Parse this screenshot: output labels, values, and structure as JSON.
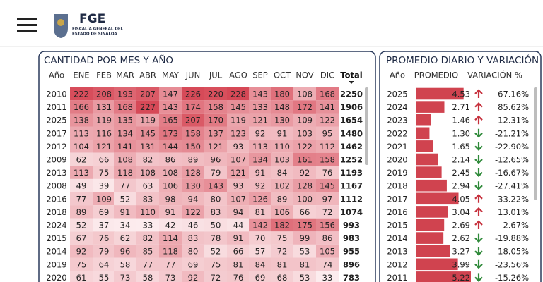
{
  "header": {
    "title": "FGE",
    "subtitle_lines": [
      "FISCALÍA GENERAL DEL",
      "ESTADO DE SINALOA"
    ]
  },
  "monthly_table": {
    "title": "CANTIDAD POR MES Y AÑO",
    "columns": [
      "Año",
      "ENE",
      "FEB",
      "MAR",
      "ABR",
      "MAY",
      "JUN",
      "JUL",
      "AGO",
      "SEP",
      "OCT",
      "NOV",
      "DIC",
      "Total"
    ],
    "rows": [
      [
        2010,
        222,
        208,
        193,
        207,
        147,
        226,
        220,
        228,
        143,
        180,
        108,
        168,
        2250
      ],
      [
        2011,
        166,
        131,
        168,
        227,
        143,
        174,
        158,
        145,
        133,
        148,
        172,
        141,
        1906
      ],
      [
        2025,
        138,
        119,
        135,
        119,
        165,
        207,
        170,
        119,
        121,
        130,
        109,
        122,
        1654
      ],
      [
        2017,
        113,
        116,
        134,
        145,
        173,
        158,
        137,
        123,
        92,
        91,
        103,
        95,
        1480
      ],
      [
        2012,
        104,
        121,
        141,
        131,
        144,
        150,
        121,
        93,
        113,
        110,
        122,
        112,
        1462
      ],
      [
        2009,
        62,
        66,
        108,
        82,
        86,
        89,
        96,
        107,
        134,
        103,
        161,
        158,
        1252
      ],
      [
        2013,
        113,
        75,
        118,
        108,
        108,
        128,
        79,
        121,
        91,
        84,
        92,
        76,
        1193
      ],
      [
        2008,
        49,
        39,
        77,
        63,
        106,
        130,
        143,
        93,
        92,
        102,
        128,
        145,
        1167
      ],
      [
        2016,
        77,
        109,
        52,
        83,
        98,
        94,
        80,
        107,
        126,
        89,
        100,
        97,
        1112
      ],
      [
        2018,
        89,
        69,
        91,
        110,
        91,
        122,
        83,
        94,
        81,
        106,
        66,
        72,
        1074
      ],
      [
        2024,
        52,
        37,
        34,
        33,
        42,
        46,
        50,
        44,
        142,
        182,
        175,
        156,
        993
      ],
      [
        2015,
        67,
        76,
        62,
        82,
        114,
        83,
        78,
        91,
        70,
        75,
        99,
        86,
        983
      ],
      [
        2014,
        92,
        79,
        96,
        85,
        118,
        80,
        52,
        66,
        57,
        72,
        53,
        105,
        955
      ],
      [
        2019,
        75,
        64,
        58,
        77,
        77,
        69,
        75,
        81,
        84,
        81,
        81,
        74,
        896
      ],
      [
        2020,
        61,
        55,
        73,
        58,
        73,
        92,
        72,
        76,
        69,
        68,
        53,
        33,
        783
      ]
    ]
  },
  "daily_table": {
    "title": "PROMEDIO DIARIO Y VARIACIÓN",
    "columns": [
      "Año",
      "PROMEDIO",
      "VARIACIÓN %"
    ],
    "rows": [
      [
        2025,
        "4.53",
        "67.16%"
      ],
      [
        2024,
        "2.71",
        "85.62%"
      ],
      [
        2023,
        "1.46",
        "12.31%"
      ],
      [
        2022,
        "1.30",
        "-21.21%"
      ],
      [
        2021,
        "1.65",
        "-22.90%"
      ],
      [
        2020,
        "2.14",
        "-12.65%"
      ],
      [
        2019,
        "2.45",
        "-16.67%"
      ],
      [
        2018,
        "2.94",
        "-27.41%"
      ],
      [
        2017,
        "4.05",
        "33.22%"
      ],
      [
        2016,
        "3.04",
        "13.01%"
      ],
      [
        2015,
        "2.69",
        "2.67%"
      ],
      [
        2014,
        "2.62",
        "-19.88%"
      ],
      [
        2013,
        "3.27",
        "-18.05%"
      ],
      [
        2012,
        "3.99",
        "-23.56%"
      ],
      [
        2011,
        "5.22",
        "-15.26%"
      ]
    ]
  }
}
